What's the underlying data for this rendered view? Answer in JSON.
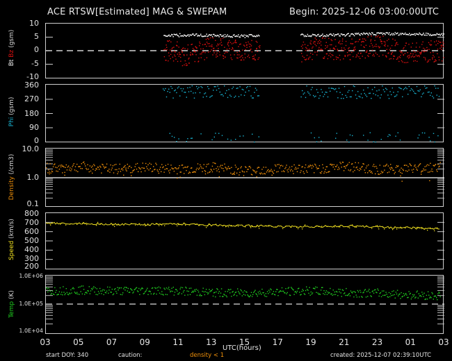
{
  "header": {
    "title": "ACE RTSW[Estimated] MAG & SWEPAM",
    "begin": "Begin: 2025-12-06 03:00:00UTC"
  },
  "panels": {
    "mag": {
      "label_bt": "Bt",
      "label_bz": "Bz",
      "label_unit": "(gsm)",
      "yticks": [
        "10",
        "5",
        "0",
        "-5",
        "-10"
      ]
    },
    "phi": {
      "label": "Phi",
      "label_unit": "(gsm)",
      "yticks": [
        "360",
        "270",
        "180",
        "90",
        "0"
      ]
    },
    "density": {
      "label": "Density",
      "label_unit": "(/cm3)",
      "yticks": [
        "10.0",
        "1.0",
        "0.1"
      ]
    },
    "speed": {
      "label": "Speed",
      "label_unit": "(km/s)",
      "yticks": [
        "800",
        "700",
        "600",
        "500",
        "400",
        "300",
        "200"
      ]
    },
    "temp": {
      "label": "Temp",
      "label_unit": "(K)",
      "yticks": [
        "1.0E+06",
        "1.0E+05",
        "1.0E+04"
      ]
    }
  },
  "xaxis": {
    "ticks": [
      "03",
      "05",
      "07",
      "09",
      "11",
      "13",
      "15",
      "17",
      "19",
      "21",
      "23",
      "01",
      "03"
    ],
    "label": "UTC(hours)"
  },
  "footer": {
    "start_doy": "start DOY: 340",
    "caution": "caution:",
    "density_note": "density < 1",
    "created": "created: 2025-12-07 02:39:10UTC"
  },
  "colors": {
    "bt": "#ffffff",
    "bz": "#e01010",
    "phi": "#1ab8d8",
    "density": "#f0900a",
    "speed": "#f0e020",
    "temp": "#20d020",
    "axis": "#cfcfcf"
  },
  "chart_data": [
    {
      "type": "scatter",
      "title": "ACE RTSW[Estimated] MAG - Bt/Bz (gsm)",
      "xlabel": "UTC(hours)",
      "ylabel": "Bt Bz (gsm)",
      "ylim": [
        -10,
        10
      ],
      "x": [
        "03",
        "05",
        "07",
        "09",
        "11",
        "13",
        "15",
        "17",
        "19",
        "21",
        "23",
        "01",
        "03"
      ],
      "series": [
        {
          "name": "Bt",
          "values": [
            null,
            null,
            null,
            null,
            6.0,
            5.8,
            5.5,
            null,
            5.8,
            6.0,
            6.5,
            6.3,
            6.2
          ]
        },
        {
          "name": "Bz",
          "values": [
            null,
            null,
            null,
            null,
            -2.0,
            1.5,
            0.5,
            null,
            1.5,
            0.5,
            2.0,
            -1.0,
            0.5
          ]
        }
      ],
      "annotations": [
        "dashed line at 0",
        "data gap 03-10 and 16-18 UTC"
      ]
    },
    {
      "type": "scatter",
      "title": "Phi (gsm)",
      "ylim": [
        0,
        360
      ],
      "x": [
        "03",
        "05",
        "07",
        "09",
        "11",
        "13",
        "15",
        "17",
        "19",
        "21",
        "23",
        "01",
        "03"
      ],
      "series": [
        {
          "name": "Phi",
          "values": [
            null,
            null,
            null,
            null,
            310,
            320,
            320,
            null,
            310,
            300,
            320,
            320,
            330
          ]
        }
      ]
    },
    {
      "type": "scatter",
      "title": "Density (/cm3)",
      "yscale": "log",
      "ylim": [
        0.1,
        10.0
      ],
      "x": [
        "03",
        "05",
        "07",
        "09",
        "11",
        "13",
        "15",
        "17",
        "19",
        "21",
        "23",
        "01",
        "03"
      ],
      "series": [
        {
          "name": "Density",
          "values": [
            2.2,
            2.5,
            2.0,
            2.3,
            2.0,
            2.3,
            1.8,
            2.2,
            2.0,
            2.6,
            2.0,
            2.2,
            2.5
          ]
        }
      ],
      "annotations": [
        "solid line at 1.0"
      ]
    },
    {
      "type": "line",
      "title": "Speed (km/s)",
      "ylim": [
        200,
        800
      ],
      "x": [
        "03",
        "05",
        "07",
        "09",
        "11",
        "13",
        "15",
        "17",
        "19",
        "21",
        "23",
        "01",
        "03"
      ],
      "series": [
        {
          "name": "Speed",
          "values": [
            690,
            690,
            680,
            675,
            680,
            670,
            665,
            655,
            655,
            660,
            650,
            640,
            630
          ]
        }
      ]
    },
    {
      "type": "scatter",
      "title": "Temp (K)",
      "yscale": "log",
      "ylim": [
        10000,
        1000000
      ],
      "x": [
        "03",
        "05",
        "07",
        "09",
        "11",
        "13",
        "15",
        "17",
        "19",
        "21",
        "23",
        "01",
        "03"
      ],
      "series": [
        {
          "name": "Temp",
          "values": [
            300000,
            320000,
            300000,
            310000,
            300000,
            260000,
            250000,
            280000,
            300000,
            260000,
            250000,
            220000,
            200000
          ]
        }
      ],
      "annotations": [
        "dashed line at 1.0E+05"
      ]
    }
  ]
}
